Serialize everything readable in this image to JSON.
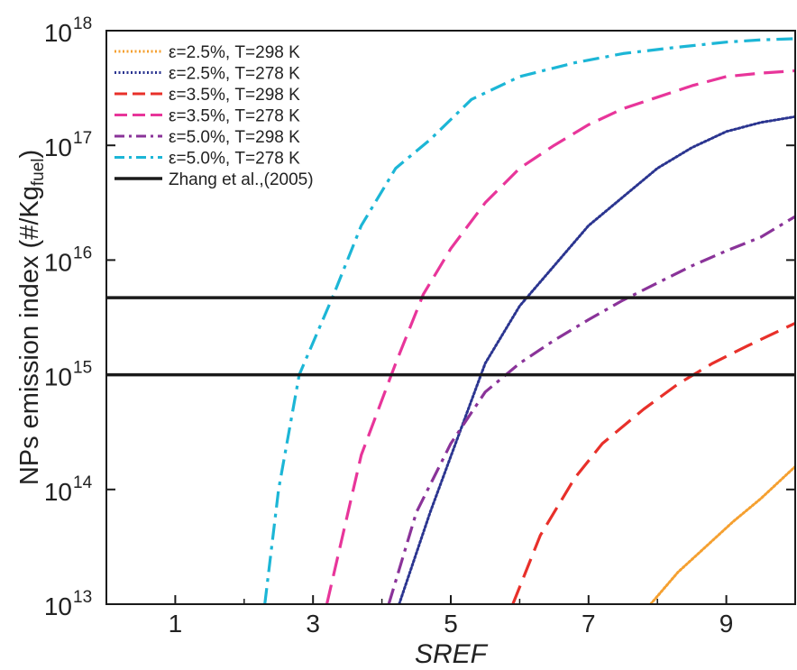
{
  "chart_data": {
    "type": "line",
    "xlabel": "SREF",
    "ylabel": "NPs emission index (#/Kg",
    "ylabel_sub": "fuel",
    "ylabel_close": ")",
    "xlim": [
      0,
      10
    ],
    "ylim_log10": [
      13,
      18
    ],
    "log_scale_y": true,
    "x_ticks": [
      1,
      3,
      5,
      7,
      9
    ],
    "x_tick_labels": [
      "1",
      "3",
      "5",
      "7",
      "9"
    ],
    "y_ticks_exp": [
      13,
      14,
      15,
      16,
      17,
      18
    ],
    "y_tick_base": "10",
    "y_tick_exps": [
      "13",
      "14",
      "15",
      "16",
      "17",
      "18"
    ],
    "grid": false,
    "legend_position": "top-left",
    "series": [
      {
        "name": "ε=2.5%, T=298 K",
        "color": "#f5a030",
        "style": "dotted",
        "x": [
          7.9,
          8.3,
          8.7,
          9.1,
          9.5,
          10.0
        ],
        "y_log10": [
          13.0,
          13.28,
          13.5,
          13.72,
          13.92,
          14.2
        ]
      },
      {
        "name": "ε=2.5%, T=278 K",
        "color": "#2b3590",
        "style": "dotted",
        "x": [
          4.25,
          4.7,
          5.1,
          5.5,
          6.0,
          6.5,
          7.0,
          7.5,
          8.0,
          8.5,
          9.0,
          9.5,
          10.0
        ],
        "y_log10": [
          13.0,
          13.8,
          14.45,
          15.1,
          15.6,
          15.95,
          16.3,
          16.55,
          16.8,
          16.98,
          17.12,
          17.2,
          17.25
        ]
      },
      {
        "name": "ε=3.5%, T=298 K",
        "color": "#e8302a",
        "style": "dash",
        "x": [
          5.9,
          6.3,
          6.8,
          7.2,
          7.8,
          8.3,
          8.8,
          9.3,
          10.0
        ],
        "y_log10": [
          13.0,
          13.6,
          14.1,
          14.4,
          14.7,
          14.92,
          15.1,
          15.25,
          15.45
        ]
      },
      {
        "name": "ε=3.5%, T=278 K",
        "color": "#e8359a",
        "style": "dash",
        "x": [
          3.2,
          3.7,
          4.2,
          4.6,
          5.0,
          5.5,
          6.0,
          6.5,
          7.0,
          7.5,
          8.0,
          8.5,
          9.0,
          9.5,
          10.0
        ],
        "y_log10": [
          13.0,
          14.3,
          15.1,
          15.7,
          16.1,
          16.5,
          16.8,
          17.0,
          17.18,
          17.32,
          17.42,
          17.52,
          17.6,
          17.63,
          17.65
        ]
      },
      {
        "name": "ε=5.0%, T=298 K",
        "color": "#8a3399",
        "style": "dashdot",
        "x": [
          4.1,
          4.5,
          5.0,
          5.5,
          6.0,
          6.5,
          7.0,
          7.5,
          8.0,
          8.5,
          9.0,
          9.5,
          10.0
        ],
        "y_log10": [
          13.0,
          13.8,
          14.4,
          14.85,
          15.1,
          15.3,
          15.48,
          15.65,
          15.8,
          15.95,
          16.08,
          16.2,
          16.38
        ]
      },
      {
        "name": "ε=5.0%, T=278 K",
        "color": "#1cb6d6",
        "style": "dashdot",
        "x": [
          2.3,
          2.5,
          2.8,
          3.3,
          3.7,
          4.2,
          4.7,
          5.3,
          6.0,
          6.8,
          7.5,
          8.2,
          9.0,
          9.5,
          10.0
        ],
        "y_log10": [
          13.0,
          14.0,
          15.0,
          15.7,
          16.3,
          16.8,
          17.05,
          17.4,
          17.6,
          17.72,
          17.8,
          17.85,
          17.9,
          17.92,
          17.93
        ]
      }
    ],
    "reference_lines": {
      "name": "Zhang et al.,(2005)",
      "color": "#1a1a1a",
      "style": "solid",
      "y_values": [
        1000000000000000.0,
        4700000000000000.0
      ]
    }
  }
}
